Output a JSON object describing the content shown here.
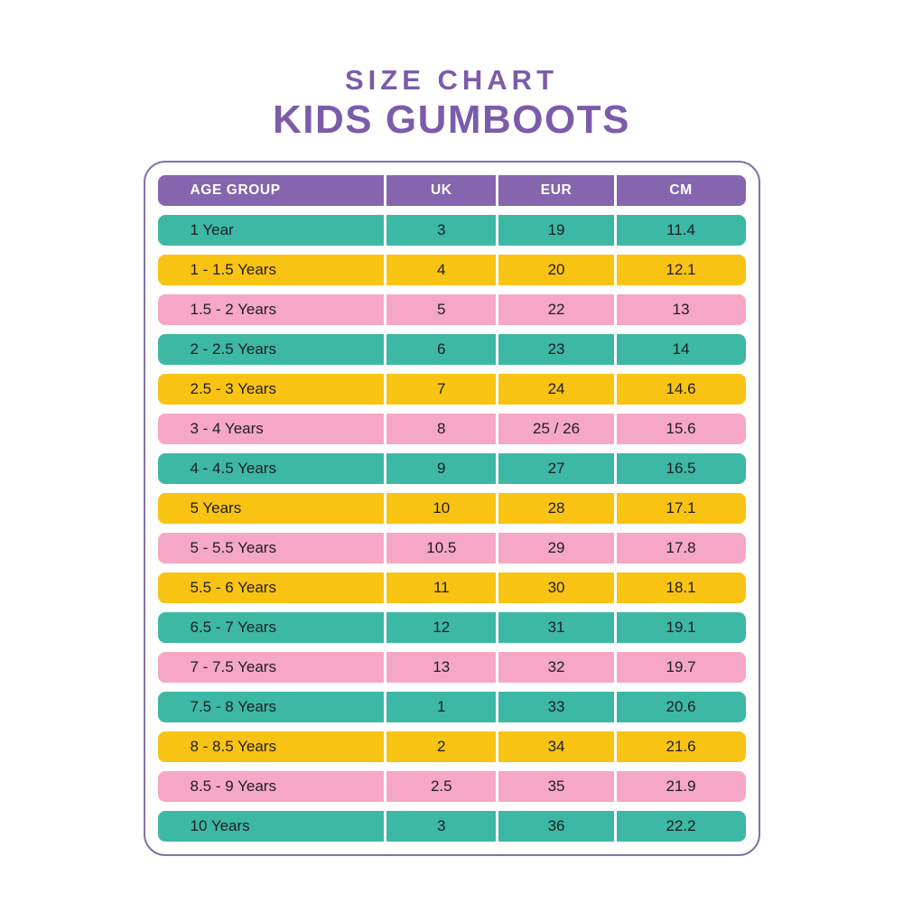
{
  "title": "SIZE CHART",
  "subtitle": "KIDS GUMBOOTS",
  "colors": {
    "purple-title": "#7b5caa",
    "purple-header": "#8566ae",
    "card-border": "#8273a8",
    "teal": "#3cb8a5",
    "yellow": "#f9c313",
    "pink": "#f6a7c6",
    "row-text": "#1e1e1e",
    "header-text": "#ffffff"
  },
  "table": {
    "columns": [
      "AGE GROUP",
      "UK",
      "EUR",
      "CM"
    ],
    "rows": [
      {
        "age": "1 Year",
        "uk": "3",
        "eur": "19",
        "cm": "11.4",
        "color": "teal"
      },
      {
        "age": "1 - 1.5 Years",
        "uk": "4",
        "eur": "20",
        "cm": "12.1",
        "color": "yellow"
      },
      {
        "age": "1.5 - 2 Years",
        "uk": "5",
        "eur": "22",
        "cm": "13",
        "color": "pink"
      },
      {
        "age": "2 - 2.5 Years",
        "uk": "6",
        "eur": "23",
        "cm": "14",
        "color": "teal"
      },
      {
        "age": "2.5 - 3 Years",
        "uk": "7",
        "eur": "24",
        "cm": "14.6",
        "color": "yellow"
      },
      {
        "age": "3 - 4 Years",
        "uk": "8",
        "eur": "25 / 26",
        "cm": "15.6",
        "color": "pink"
      },
      {
        "age": "4 - 4.5 Years",
        "uk": "9",
        "eur": "27",
        "cm": "16.5",
        "color": "teal"
      },
      {
        "age": "5 Years",
        "uk": "10",
        "eur": "28",
        "cm": "17.1",
        "color": "yellow"
      },
      {
        "age": "5 - 5.5 Years",
        "uk": "10.5",
        "eur": "29",
        "cm": "17.8",
        "color": "pink"
      },
      {
        "age": "5.5 - 6 Years",
        "uk": "11",
        "eur": "30",
        "cm": "18.1",
        "color": "yellow"
      },
      {
        "age": "6.5 - 7 Years",
        "uk": "12",
        "eur": "31",
        "cm": "19.1",
        "color": "teal"
      },
      {
        "age": "7 - 7.5 Years",
        "uk": "13",
        "eur": "32",
        "cm": "19.7",
        "color": "pink"
      },
      {
        "age": "7.5 - 8 Years",
        "uk": "1",
        "eur": "33",
        "cm": "20.6",
        "color": "teal"
      },
      {
        "age": "8 - 8.5 Years",
        "uk": "2",
        "eur": "34",
        "cm": "21.6",
        "color": "yellow"
      },
      {
        "age": "8.5 - 9 Years",
        "uk": "2.5",
        "eur": "35",
        "cm": "21.9",
        "color": "pink"
      },
      {
        "age": "10 Years",
        "uk": "3",
        "eur": "36",
        "cm": "22.2",
        "color": "teal"
      }
    ]
  }
}
